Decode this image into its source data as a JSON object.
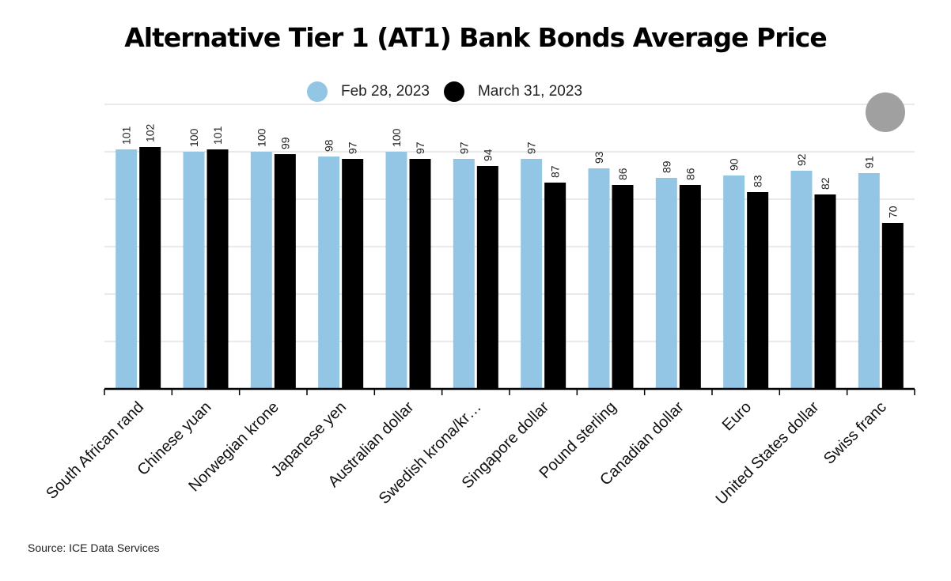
{
  "title": "Alternative Tier 1 (AT1) Bank Bonds Average Price",
  "source": "Source: ICE Data Services",
  "legend": [
    {
      "label": "Feb 28, 2023",
      "color": "#93c6e4"
    },
    {
      "label": "March 31, 2023",
      "color": "#000000"
    }
  ],
  "chart_data": {
    "type": "bar",
    "title": "Alternative Tier 1 (AT1) Bank Bonds Average Price",
    "categories": [
      "South African rand",
      "Chinese yuan",
      "Norwegian krone",
      "Japanese yen",
      "Australian dollar",
      "Swedish krona/kr…",
      "Singapore dollar",
      "Pound sterling",
      "Canadian dollar",
      "Euro",
      "United States dollar",
      "Swiss franc"
    ],
    "series": [
      {
        "name": "Feb 28, 2023",
        "color": "#93c6e4",
        "values": [
          101,
          100,
          100,
          98,
          100,
          97,
          97,
          93,
          89,
          90,
          92,
          91
        ]
      },
      {
        "name": "March 31, 2023",
        "color": "#000000",
        "values": [
          102,
          101,
          99,
          97,
          97,
          94,
          87,
          86,
          86,
          83,
          82,
          70
        ]
      }
    ],
    "ylim": [
      0,
      120
    ],
    "gridlines": [
      20,
      40,
      60,
      80,
      100,
      120
    ],
    "grid": true,
    "legend_position": "top-center",
    "xlabel": "",
    "ylabel": ""
  }
}
